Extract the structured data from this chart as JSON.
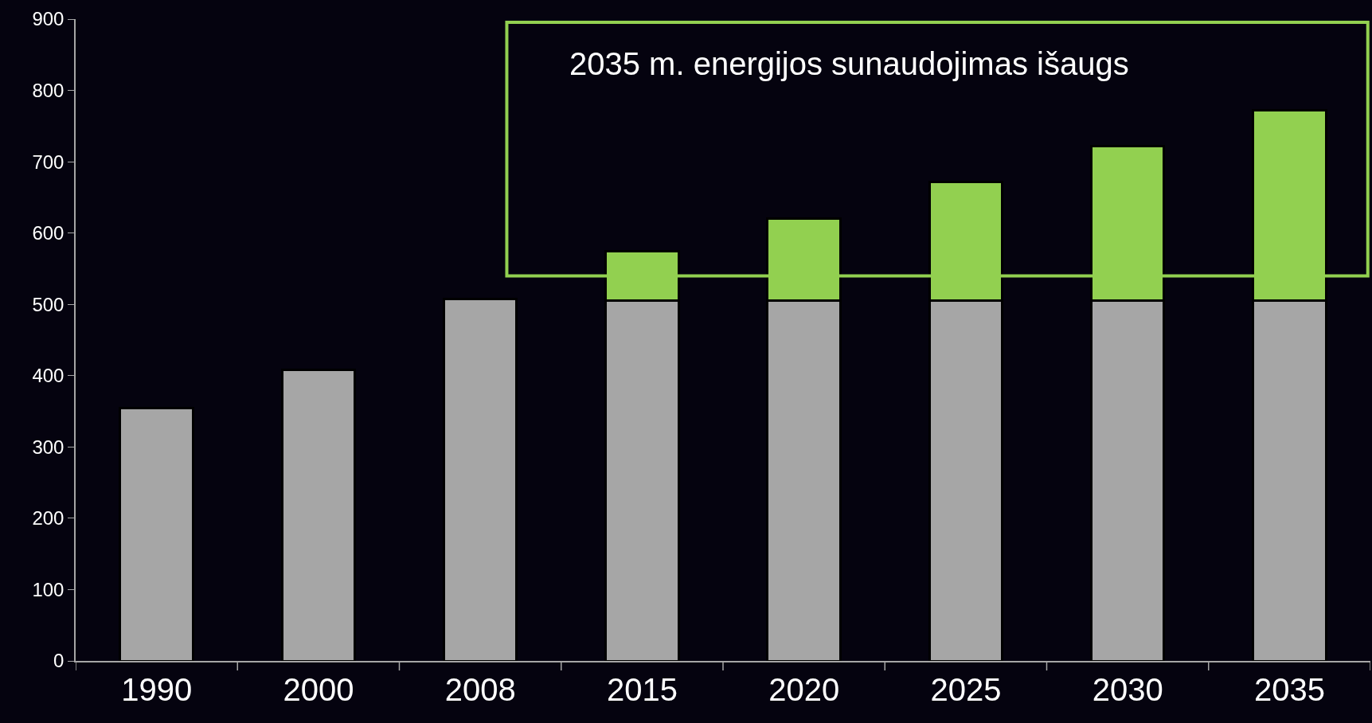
{
  "chart_data": {
    "type": "bar",
    "stacked": true,
    "categories": [
      "1990",
      "2000",
      "2008",
      "2015",
      "2020",
      "2025",
      "2030",
      "2035"
    ],
    "series": [
      {
        "color": "#a6a6a6",
        "values": [
          355,
          408,
          507,
          505,
          505,
          505,
          505,
          505
        ]
      },
      {
        "color": "#92d050",
        "values": [
          null,
          null,
          null,
          70,
          115,
          167,
          217,
          267
        ]
      }
    ],
    "ylim": [
      0,
      900
    ],
    "yticks": [
      0,
      100,
      200,
      300,
      400,
      500,
      600,
      700,
      800,
      900
    ],
    "annotations": [
      "2035 m. energijos sunaudojimas išaugs"
    ]
  }
}
